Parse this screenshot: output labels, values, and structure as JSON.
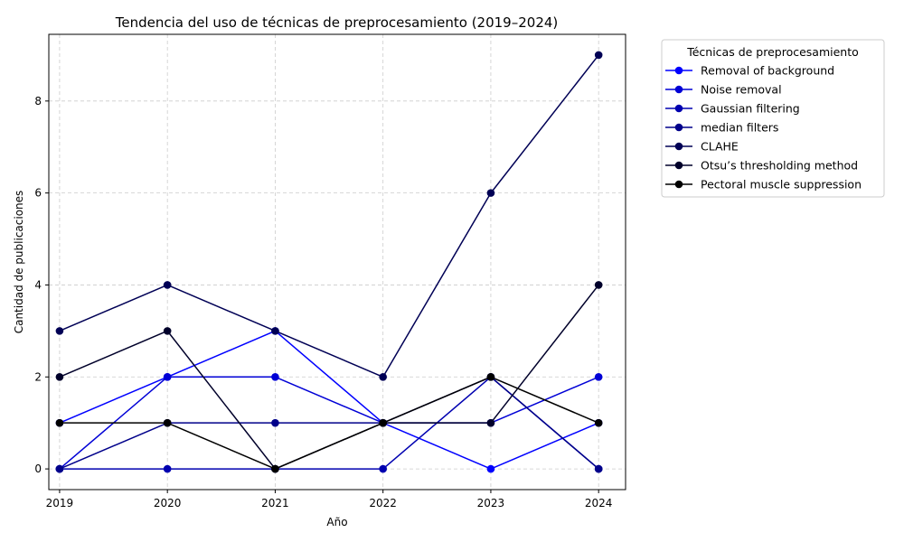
{
  "chart_data": {
    "type": "line",
    "title": "Tendencia del uso de técnicas de preprocesamiento (2019–2024)",
    "xlabel": "Año",
    "ylabel": "Cantidad de publicaciones",
    "x": [
      2019,
      2020,
      2021,
      2022,
      2023,
      2024
    ],
    "x_tick_labels": [
      "2019",
      "2020",
      "2021",
      "2022",
      "2023",
      "2024"
    ],
    "y_ticks": [
      0,
      2,
      4,
      6,
      8
    ],
    "y_tick_labels": [
      "0",
      "2",
      "4",
      "6",
      "8"
    ],
    "xlim": [
      2018.9,
      2024.25
    ],
    "ylim": [
      -0.45,
      9.45
    ],
    "grid": true,
    "legend_title": "Técnicas de preprocesamiento",
    "legend_position": "outside-right",
    "series": [
      {
        "name": "Removal of background",
        "color": "#0000ff",
        "values": [
          1,
          2,
          3,
          1,
          0,
          1
        ]
      },
      {
        "name": "Noise removal",
        "color": "#0000d6",
        "values": [
          0,
          2,
          2,
          1,
          1,
          2
        ]
      },
      {
        "name": "Gaussian filtering",
        "color": "#0000b0",
        "values": [
          0,
          0,
          0,
          0,
          2,
          0
        ]
      },
      {
        "name": "median filters",
        "color": "#00008a",
        "values": [
          0,
          1,
          1,
          1,
          2,
          0
        ]
      },
      {
        "name": "CLAHE",
        "color": "#000055",
        "values": [
          3,
          4,
          3,
          2,
          6,
          9
        ]
      },
      {
        "name": "Otsu’s thresholding method",
        "color": "#00002a",
        "values": [
          2,
          3,
          0,
          1,
          1,
          4
        ]
      },
      {
        "name": "Pectoral muscle suppression",
        "color": "#000000",
        "values": [
          1,
          1,
          0,
          1,
          2,
          1
        ]
      }
    ]
  }
}
